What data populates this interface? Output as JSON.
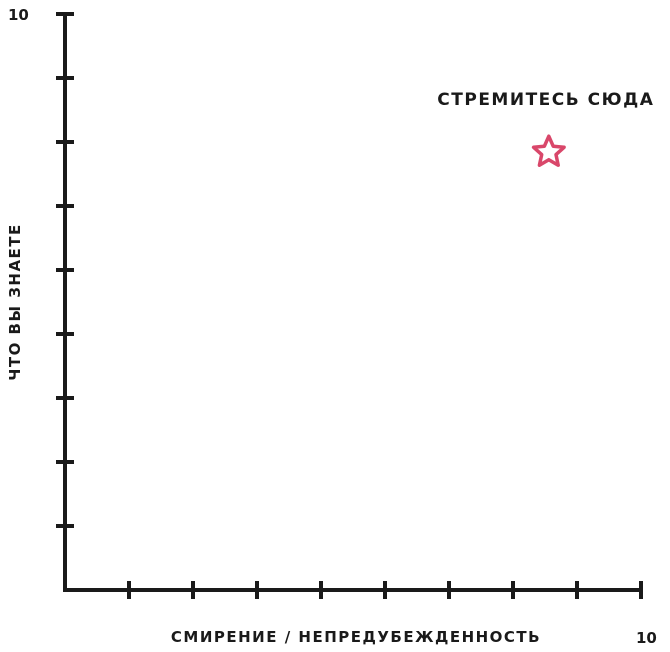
{
  "chart_data": {
    "type": "scatter",
    "title": "",
    "xlabel": "СМИРЕНИЕ / НЕПРЕДУБЕЖДЕННОСТЬ",
    "ylabel": "ЧТО ВЫ ЗНАЕТЕ",
    "xlim": [
      0,
      10
    ],
    "ylim": [
      0,
      10
    ],
    "x_max_label": "10",
    "y_max_label": "10",
    "x_tick_count": 9,
    "y_tick_count": 9,
    "grid": false,
    "points": [
      {
        "x": 8.4,
        "y": 7.6,
        "marker": "star",
        "label": "СТРЕМИТЕСЬ СЮДА"
      }
    ],
    "colors": {
      "axis": "#1a1a1a",
      "marker": "#d9476a"
    }
  }
}
